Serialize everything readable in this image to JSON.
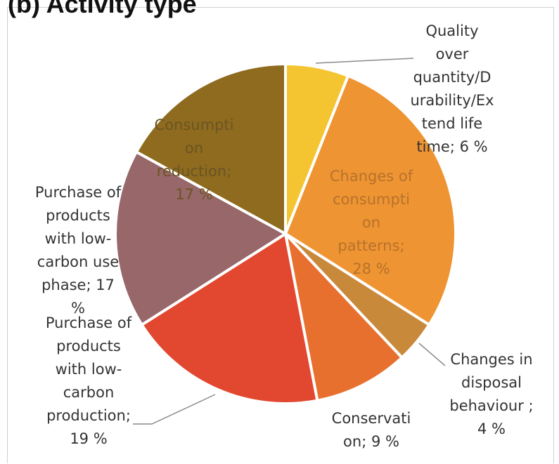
{
  "chart_data": {
    "type": "pie",
    "title": "(b) Activity type",
    "slices": [
      {
        "name": "Quality over quantity/Durability/Extend life time",
        "value": 6,
        "label_lines": [
          "Quality",
          "over",
          "quantity/D",
          "urability/Ex",
          "tend life",
          "time; 6 %"
        ],
        "color": "#F4C531",
        "label_color": "#333333"
      },
      {
        "name": "Changes of consumption patterns",
        "value": 28,
        "label_lines": [
          "Changes of",
          "consumpti",
          "on",
          "patterns;",
          "28 %"
        ],
        "color": "#EE9432",
        "label_color": "#b7722c"
      },
      {
        "name": "Changes in disposal behaviour",
        "value": 4,
        "label_lines": [
          "Changes in",
          "disposal",
          "behaviour ;",
          "4 %"
        ],
        "color": "#C9893A",
        "label_color": "#333333"
      },
      {
        "name": "Conservation",
        "value": 9,
        "label_lines": [
          "Conservati",
          "on; 9 %"
        ],
        "color": "#E8702F",
        "label_color": "#333333"
      },
      {
        "name": "Purchase of products with low-carbon production",
        "value": 19,
        "label_lines": [
          "Purchase of",
          "products",
          "with low-",
          "carbon",
          "production;",
          "19 %"
        ],
        "color": "#E2472F",
        "label_color": "#333333"
      },
      {
        "name": "Purchase of products with low-carbon use phase",
        "value": 17,
        "label_lines": [
          "Purchase of",
          "products",
          "with low-",
          "carbon use",
          "phase; 17",
          "%"
        ],
        "color": "#97676A",
        "label_color": "#333333"
      },
      {
        "name": "Consumption reduction",
        "value": 17,
        "label_lines": [
          "Consumpti",
          "on",
          "reduction;",
          "17 %"
        ],
        "color": "#8E6B1E",
        "label_color": "#6b5524"
      }
    ]
  }
}
